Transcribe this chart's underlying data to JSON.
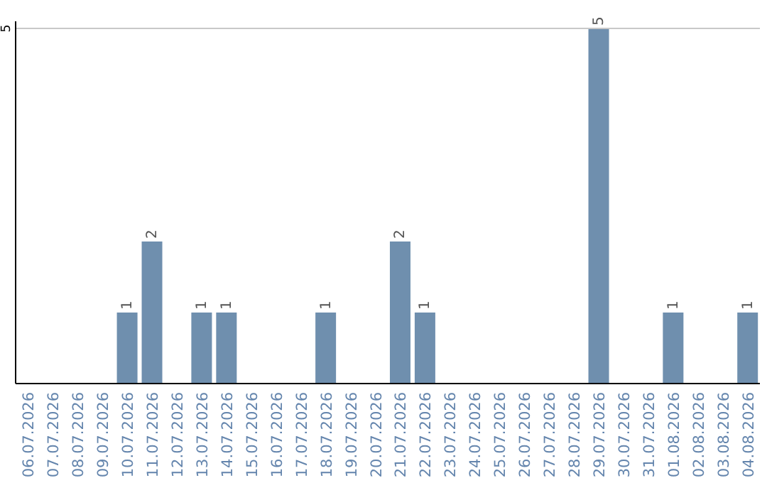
{
  "chart_data": {
    "type": "bar",
    "categories": [
      "06.07.2026",
      "07.07.2026",
      "08.07.2026",
      "09.07.2026",
      "10.07.2026",
      "11.07.2026",
      "12.07.2026",
      "13.07.2026",
      "14.07.2026",
      "15.07.2026",
      "16.07.2026",
      "17.07.2026",
      "18.07.2026",
      "19.07.2026",
      "20.07.2026",
      "21.07.2026",
      "22.07.2026",
      "23.07.2026",
      "24.07.2026",
      "25.07.2026",
      "26.07.2026",
      "27.07.2026",
      "28.07.2026",
      "29.07.2026",
      "30.07.2026",
      "31.07.2026",
      "01.08.2026",
      "02.08.2026",
      "03.08.2026",
      "04.08.2026"
    ],
    "values": [
      0,
      0,
      0,
      0,
      1,
      2,
      0,
      1,
      1,
      0,
      0,
      0,
      1,
      0,
      0,
      2,
      1,
      0,
      0,
      0,
      0,
      0,
      0,
      5,
      0,
      0,
      1,
      0,
      0,
      1
    ],
    "value_labels": [
      null,
      null,
      null,
      null,
      "1",
      "2",
      null,
      "1",
      "1",
      null,
      null,
      null,
      "1",
      null,
      null,
      "2",
      "1",
      null,
      null,
      null,
      null,
      null,
      null,
      "5",
      null,
      null,
      "1",
      null,
      null,
      "1"
    ],
    "color": "#6f8fae",
    "ylim": [
      0,
      5
    ],
    "yticks": [
      5
    ],
    "ref_lines": [
      {
        "axis": "y",
        "value": 5,
        "color": "#c8c8c8"
      }
    ]
  }
}
